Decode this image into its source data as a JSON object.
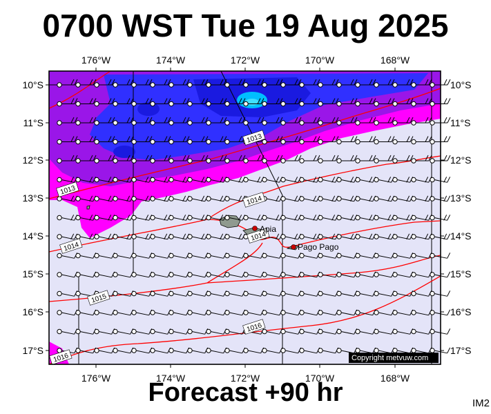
{
  "title": "0700 WST Tue 19 Aug 2025",
  "footer": "Forecast +90 hr",
  "ident": "IM2",
  "copyright": "Copyright metvuw.com",
  "colors": {
    "background_field": "#e4e4f8",
    "magenta": "#ff00ff",
    "violet": "#9a16e8",
    "blue": "#3030ff",
    "deep_blue": "#1a1ae0",
    "cyan": "#00bfff",
    "isobar": "#ff0000",
    "land": "#8f9a8f"
  },
  "map": {
    "lon_ticks": [
      "176°W",
      "174°W",
      "172°W",
      "170°W",
      "168°W"
    ],
    "lat_ticks": [
      "10°S",
      "11°S",
      "12°S",
      "13°S",
      "14°S",
      "15°S",
      "16°S",
      "17°S"
    ],
    "places": [
      {
        "name": "Apia",
        "icon": "city-dot-icon"
      },
      {
        "name": "Pago Pago",
        "icon": "city-dot-icon"
      }
    ],
    "isobar_labels": [
      "1013",
      "1013",
      "1014",
      "1014",
      "1014",
      "1015",
      "1016",
      "1016"
    ]
  }
}
